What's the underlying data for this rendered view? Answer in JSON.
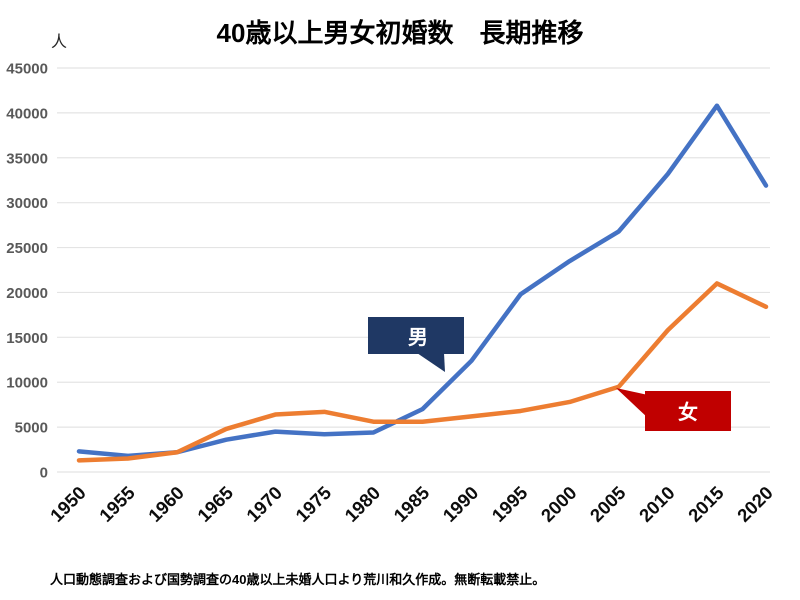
{
  "chart_data": {
    "type": "line",
    "title": "40歳以上男女初婚数　長期推移",
    "unit_label": "人",
    "source_note": "人口動態調査および国勢調査の40歳以上未婚人口より荒川和久作成。無断転載禁止。",
    "categories": [
      "1950",
      "1955",
      "1960",
      "1965",
      "1970",
      "1975",
      "1980",
      "1985",
      "1990",
      "1995",
      "2000",
      "2005",
      "2010",
      "2015",
      "2020"
    ],
    "series": [
      {
        "id": "male",
        "name": "男",
        "color": "#4472C4",
        "values": [
          2300,
          1800,
          2200,
          3600,
          4500,
          4200,
          4400,
          7000,
          12400,
          19800,
          23500,
          26800,
          33200,
          40800,
          31900
        ],
        "callout": {
          "text": "男",
          "bg": "#1F3864",
          "text_color": "#FFFFFF"
        }
      },
      {
        "id": "female",
        "name": "女",
        "color": "#ED7D31",
        "values": [
          1300,
          1500,
          2200,
          4800,
          6400,
          6700,
          5600,
          5600,
          6200,
          6800,
          7800,
          9500,
          15800,
          21000,
          18400
        ],
        "callout": {
          "text": "女",
          "bg": "#C00000",
          "text_color": "#FFFFFF"
        }
      }
    ],
    "ylim": [
      0,
      45000
    ],
    "ytick_step": 5000,
    "yticks": [
      "0",
      "5000",
      "10000",
      "15000",
      "20000",
      "25000",
      "30000",
      "35000",
      "40000",
      "45000"
    ],
    "grid": true,
    "gridline_color": "#E4E4E4",
    "legend_position": "callouts-on-plot",
    "x_label_rotation": -45
  }
}
